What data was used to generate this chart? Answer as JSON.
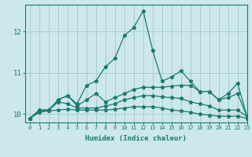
{
  "xlabel": "Humidex (Indice chaleur)",
  "ylabel": "",
  "xlim": [
    -0.5,
    23
  ],
  "ylim": [
    9.8,
    12.65
  ],
  "background_color": "#cce8ec",
  "grid_color": "#aacccc",
  "line_color": "#1a7a6e",
  "xticks": [
    0,
    1,
    2,
    3,
    4,
    5,
    6,
    7,
    8,
    9,
    10,
    11,
    12,
    13,
    14,
    15,
    16,
    17,
    18,
    19,
    20,
    21,
    22,
    23
  ],
  "yticks": [
    10,
    11,
    12
  ],
  "series": [
    [
      9.9,
      10.1,
      10.1,
      10.35,
      10.45,
      10.25,
      10.7,
      10.8,
      11.15,
      11.35,
      11.9,
      12.1,
      12.5,
      11.55,
      10.8,
      10.9,
      11.05,
      10.8,
      10.55,
      10.55,
      10.35,
      10.5,
      10.75,
      9.95
    ],
    [
      9.9,
      10.1,
      10.1,
      10.35,
      10.45,
      10.2,
      10.35,
      10.5,
      10.3,
      10.4,
      10.5,
      10.6,
      10.65,
      10.65,
      10.65,
      10.68,
      10.7,
      10.7,
      10.55,
      10.55,
      10.35,
      10.4,
      10.5,
      9.95
    ],
    [
      9.9,
      10.05,
      10.1,
      10.3,
      10.25,
      10.15,
      10.15,
      10.15,
      10.2,
      10.25,
      10.35,
      10.4,
      10.45,
      10.45,
      10.42,
      10.4,
      10.38,
      10.3,
      10.25,
      10.2,
      10.1,
      10.1,
      10.1,
      9.95
    ],
    [
      9.9,
      10.05,
      10.08,
      10.1,
      10.12,
      10.1,
      10.1,
      10.1,
      10.1,
      10.12,
      10.15,
      10.18,
      10.18,
      10.18,
      10.15,
      10.1,
      10.08,
      10.05,
      10.0,
      9.98,
      9.95,
      9.95,
      9.95,
      9.9
    ]
  ]
}
